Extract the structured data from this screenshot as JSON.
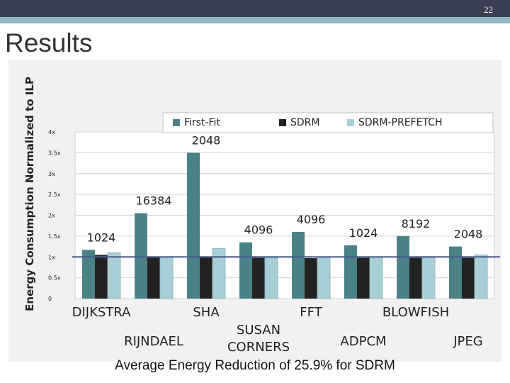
{
  "slide": {
    "number": "22",
    "title": "Results",
    "caption": "Average Energy Reduction of 25.9% for SDRM"
  },
  "colors": {
    "first_fit": "#4a8288",
    "sdrm": "#222222",
    "prefetch": "#a9cfd6",
    "baseline": "#4b5a8c"
  },
  "chart_data": {
    "type": "bar",
    "ylabel": "Energy Consumption Normalized to ILP",
    "ylim": [
      0,
      4
    ],
    "yticks": [
      "0",
      "0.5x",
      "1x",
      "1.5x",
      "2x",
      "2.5x",
      "3x",
      "3.5x",
      "4x"
    ],
    "grid": true,
    "legend": "top",
    "baseline": 1,
    "categories": [
      "DIJKSTRA",
      "RIJNDAEL",
      "SHA",
      "SUSAN CORNERS",
      "FFT",
      "ADPCM",
      "BLOWFISH",
      "JPEG"
    ],
    "category_lines": [
      [
        "DIJKSTRA"
      ],
      [
        "RIJNDAEL"
      ],
      [
        "SHA"
      ],
      [
        "SUSAN",
        "CORNERS"
      ],
      [
        "FFT"
      ],
      [
        "ADPCM"
      ],
      [
        "BLOWFISH"
      ],
      [
        "JPEG"
      ]
    ],
    "bar_labels": [
      "1024",
      "16384",
      "2048",
      "4096",
      "4096",
      "1024",
      "8192",
      "2048"
    ],
    "series": [
      {
        "name": "First-Fit",
        "values": [
          1.17,
          2.05,
          3.5,
          1.35,
          1.6,
          1.28,
          1.5,
          1.25
        ]
      },
      {
        "name": "SDRM",
        "values": [
          1.05,
          1.0,
          1.0,
          0.98,
          0.97,
          0.98,
          0.98,
          0.98
        ]
      },
      {
        "name": "SDRM-PREFETCH",
        "values": [
          1.1,
          1.0,
          1.2,
          0.98,
          1.0,
          1.0,
          0.98,
          1.05
        ]
      }
    ]
  }
}
